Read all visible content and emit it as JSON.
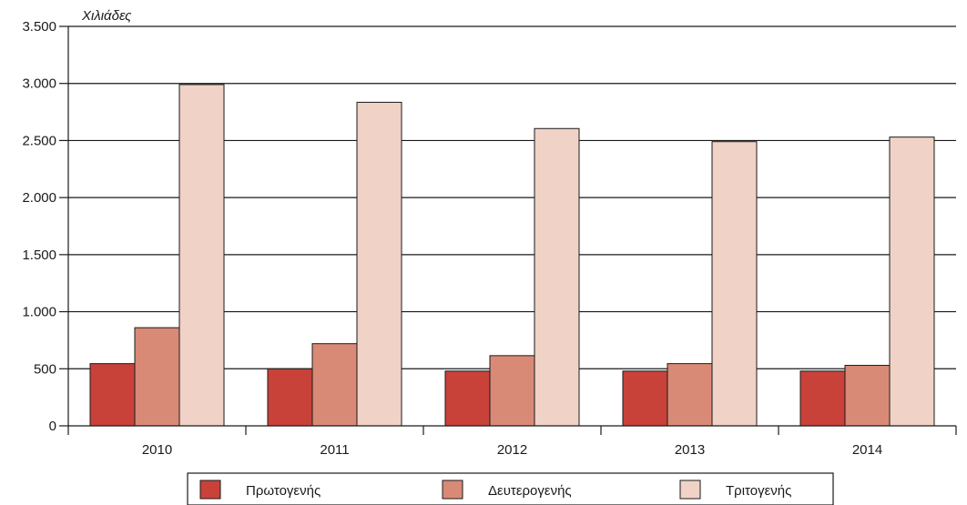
{
  "chart_data": {
    "type": "bar",
    "ylabel": "Χιλιάδες",
    "categories": [
      "2010",
      "2011",
      "2012",
      "2013",
      "2014"
    ],
    "series": [
      {
        "name": "Πρωτογενής",
        "color": "#c8423a",
        "values": [
          545,
          500,
          480,
          480,
          480
        ]
      },
      {
        "name": "Δευτερογενής",
        "color": "#d98a76",
        "values": [
          860,
          720,
          615,
          545,
          530
        ]
      },
      {
        "name": "Τριτογενής",
        "color": "#f0d2c6",
        "values": [
          2990,
          2835,
          2605,
          2490,
          2530
        ]
      }
    ],
    "ylim": [
      0,
      3500
    ],
    "yticks": [
      0,
      500,
      1000,
      1500,
      2000,
      2500,
      3000,
      3500
    ],
    "ytick_labels": [
      "0",
      "500",
      "1.000",
      "1.500",
      "2.000",
      "2.500",
      "3.000",
      "3.500"
    ],
    "grid": true,
    "legend_position": "bottom"
  }
}
